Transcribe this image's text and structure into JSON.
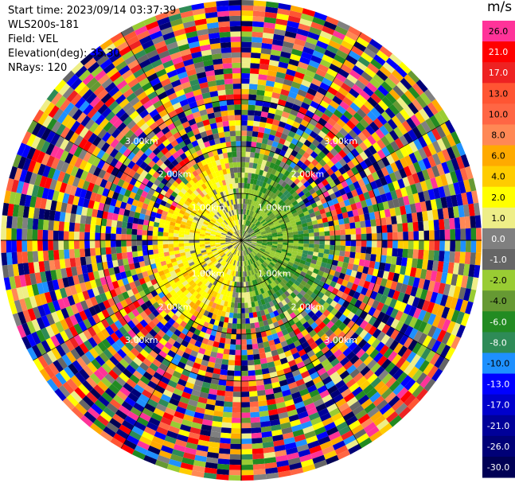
{
  "header": {
    "start_time": "Start time: 2023/09/14 03:37:39",
    "site": "WLS200s-181",
    "field": "Field: VEL",
    "elevation": "Elevation(deg): 35.30",
    "nrays": "NRays: 120"
  },
  "colorbar": {
    "unit": "m/s",
    "entries": [
      {
        "label": "26.0",
        "color": "#ff3399"
      },
      {
        "label": "21.0",
        "color": "#ff0000"
      },
      {
        "label": "17.0",
        "color": "#ee2222"
      },
      {
        "label": "13.0",
        "color": "#ff5533"
      },
      {
        "label": "10.0",
        "color": "#ff6644"
      },
      {
        "label": "8.0",
        "color": "#ff8855"
      },
      {
        "label": "6.0",
        "color": "#ffaa00"
      },
      {
        "label": "4.0",
        "color": "#ffcc00"
      },
      {
        "label": "2.0",
        "color": "#ffff00"
      },
      {
        "label": "1.0",
        "color": "#eeee88"
      },
      {
        "label": "0.0",
        "color": "#808080"
      },
      {
        "label": "-1.0",
        "color": "#666666"
      },
      {
        "label": "-2.0",
        "color": "#99cc33"
      },
      {
        "label": "-4.0",
        "color": "#669933"
      },
      {
        "label": "-6.0",
        "color": "#228b22"
      },
      {
        "label": "-8.0",
        "color": "#2e8b57"
      },
      {
        "label": "-10.0",
        "color": "#1e90ff"
      },
      {
        "label": "-13.0",
        "color": "#0000ff"
      },
      {
        "label": "-17.0",
        "color": "#0000cc"
      },
      {
        "label": "-21.0",
        "color": "#000099"
      },
      {
        "label": "-26.0",
        "color": "#000077"
      },
      {
        "label": "-30.0",
        "color": "#000055"
      }
    ]
  },
  "chart_data": {
    "type": "heatmap",
    "field": "VEL",
    "unit": "m/s",
    "nrays": 120,
    "range_rings_km": [
      1.0,
      2.0,
      3.0
    ],
    "ring_label_text": "1.00km|2.00km|3.00km",
    "vmin": -30.0,
    "vmax": 26.0,
    "velocity_zones": [
      {
        "range_km": [
          0.0,
          0.6
        ],
        "sector": "west",
        "dominant": "1.0 to 2.0"
      },
      {
        "range_km": [
          0.0,
          0.6
        ],
        "sector": "east",
        "dominant": "-2.0 to -6.0"
      },
      {
        "range_km": [
          0.6,
          1.6
        ],
        "sector": "south-west",
        "dominant": "2.0 to 4.0"
      },
      {
        "range_km": [
          0.6,
          1.6
        ],
        "sector": "north-east",
        "dominant": "-2.0 to -8.0"
      },
      {
        "range_km": [
          1.6,
          3.0
        ],
        "sector": "all",
        "dominant": "noise (-30.0 to 26.0)"
      }
    ]
  }
}
